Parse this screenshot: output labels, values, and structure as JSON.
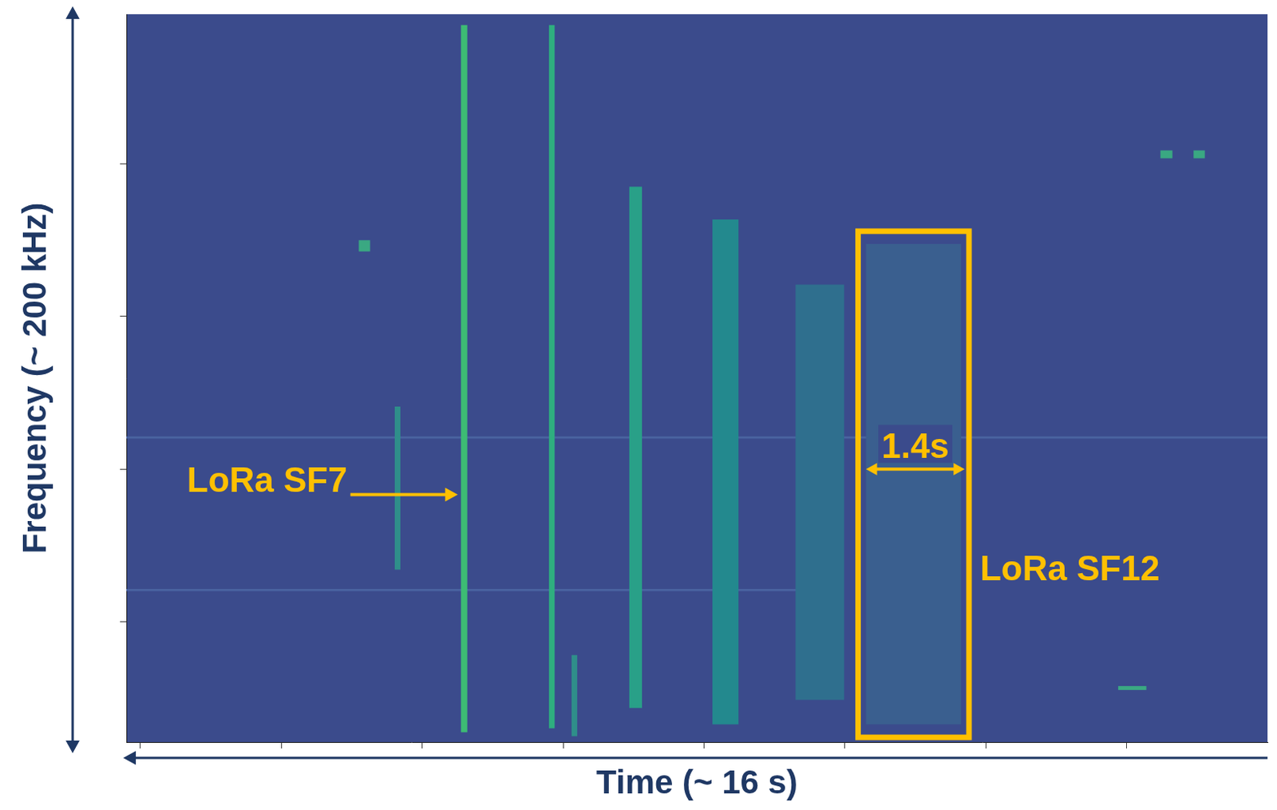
{
  "chart_data": {
    "type": "spectrogram",
    "x_label": "Time (~ 16 s)",
    "y_label": "Frequency (~ 200 kHz)",
    "xlim": [
      -0.2,
      16.0
    ],
    "xticks": [
      0,
      2,
      4,
      6,
      8,
      10,
      12,
      14
    ],
    "ylim": [
      0,
      200
    ],
    "yticks": [
      33,
      75,
      117,
      159
    ],
    "tick_labels": false,
    "grid": false,
    "bursts": [
      {
        "x": [
          4.55,
          4.64
        ],
        "y": [
          2.7,
          197
        ],
        "color": "#3dbb74",
        "name": "LoRa SF7"
      },
      {
        "x": [
          5.8,
          5.88
        ],
        "y": [
          3.8,
          197
        ],
        "color": "#2fae7f"
      },
      {
        "x": [
          6.94,
          7.12
        ],
        "y": [
          9.4,
          152.6
        ],
        "color": "#29a088"
      },
      {
        "x": [
          8.12,
          8.49
        ],
        "y": [
          4.9,
          143.6
        ],
        "color": "#23898e"
      },
      {
        "x": [
          9.3,
          9.99
        ],
        "y": [
          11.6,
          125.7
        ],
        "color": "#2f6f8e"
      },
      {
        "x": [
          10.3,
          11.65
        ],
        "y": [
          4.9,
          136.9
        ],
        "color": "#3a5f8f",
        "name": "LoRa SF12",
        "duration": {
          "value": 1.4,
          "label": "1.4s"
        }
      },
      {
        "x": [
          3.1,
          3.26
        ],
        "y": [
          134.8,
          137.9
        ],
        "color": "#3aa882"
      },
      {
        "x": [
          3.61,
          3.69
        ],
        "y": [
          47.4,
          92.2
        ],
        "color": "#2f8f8a"
      },
      {
        "x": [
          6.12,
          6.2
        ],
        "y": [
          1.6,
          23.9
        ],
        "color": "#2f8f8a"
      },
      {
        "x": [
          14.48,
          14.65
        ],
        "y": [
          160.4,
          162.6
        ],
        "color": "#3aa882"
      },
      {
        "x": [
          14.95,
          15.11
        ],
        "y": [
          160.4,
          162.6
        ],
        "color": "#3aa882"
      },
      {
        "x": [
          13.88,
          14.28
        ],
        "y": [
          14.3,
          15.4
        ],
        "color": "#3aa882"
      },
      {
        "x": [
          -0.2,
          16.0
        ],
        "y": [
          83.4,
          84.0
        ],
        "color": "#4a63a0"
      },
      {
        "x": [
          -0.2,
          9.5
        ],
        "y": [
          41.5,
          42.1
        ],
        "color": "#4a63a0"
      }
    ]
  }
}
